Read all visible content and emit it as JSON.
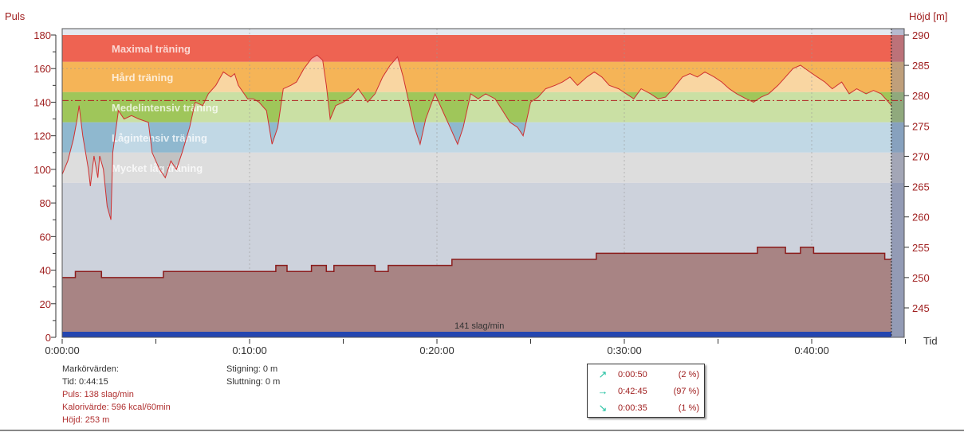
{
  "chart_data": {
    "type": "area",
    "left_axis": {
      "label": "Puls",
      "ticks": [
        0,
        20,
        40,
        60,
        80,
        100,
        120,
        140,
        160,
        180
      ],
      "range": [
        0,
        180
      ]
    },
    "right_axis": {
      "label": "Höjd [m]",
      "ticks": [
        245,
        250,
        255,
        260,
        265,
        270,
        275,
        280,
        285,
        290
      ],
      "range": [
        245,
        290
      ]
    },
    "x_axis": {
      "label": "Tid",
      "ticks": [
        "0:00:00",
        "0:10:00",
        "0:20:00",
        "0:30:00",
        "0:40:00"
      ],
      "tick_minutes": [
        0,
        10,
        20,
        30,
        40
      ],
      "range_minutes": [
        0,
        45
      ]
    },
    "zones": [
      {
        "name": "Maximal träning",
        "min": 164,
        "max": 180,
        "color": "#ee6352"
      },
      {
        "name": "Hård träning",
        "min": 146,
        "max": 164,
        "color": "#f5b457"
      },
      {
        "name": "Medelintensiv träning",
        "min": 128,
        "max": 146,
        "color": "#9fc65a"
      },
      {
        "name": "Lågintensiv träning",
        "min": 110,
        "max": 128,
        "color": "#8fb8cf"
      },
      {
        "name": "Mycket låg träning",
        "min": 92,
        "max": 110,
        "color": "#c2c2c2"
      }
    ],
    "average": {
      "value": 141,
      "label": "141 slag/min"
    },
    "marker_minute": 44.25,
    "heart_rate": [
      [
        0,
        97
      ],
      [
        0.3,
        105
      ],
      [
        0.6,
        118
      ],
      [
        0.8,
        130
      ],
      [
        0.9,
        138
      ],
      [
        1.1,
        120
      ],
      [
        1.4,
        100
      ],
      [
        1.5,
        90
      ],
      [
        1.7,
        108
      ],
      [
        1.9,
        95
      ],
      [
        2.0,
        108
      ],
      [
        2.2,
        100
      ],
      [
        2.4,
        78
      ],
      [
        2.6,
        70
      ],
      [
        2.7,
        110
      ],
      [
        3.0,
        135
      ],
      [
        3.3,
        130
      ],
      [
        3.7,
        132
      ],
      [
        4.1,
        130
      ],
      [
        4.6,
        128
      ],
      [
        4.8,
        110
      ],
      [
        5.2,
        100
      ],
      [
        5.5,
        95
      ],
      [
        5.8,
        105
      ],
      [
        6.1,
        100
      ],
      [
        6.4,
        110
      ],
      [
        6.8,
        125
      ],
      [
        7.1,
        140
      ],
      [
        7.5,
        138
      ],
      [
        7.8,
        145
      ],
      [
        8.2,
        150
      ],
      [
        8.6,
        158
      ],
      [
        9.0,
        155
      ],
      [
        9.2,
        157
      ],
      [
        9.4,
        150
      ],
      [
        9.9,
        142
      ],
      [
        10.2,
        142
      ],
      [
        10.5,
        140
      ],
      [
        10.9,
        135
      ],
      [
        11.2,
        115
      ],
      [
        11.5,
        125
      ],
      [
        11.8,
        148
      ],
      [
        12.2,
        150
      ],
      [
        12.5,
        152
      ],
      [
        12.9,
        160
      ],
      [
        13.3,
        166
      ],
      [
        13.6,
        168
      ],
      [
        13.9,
        165
      ],
      [
        14.1,
        150
      ],
      [
        14.3,
        130
      ],
      [
        14.6,
        138
      ],
      [
        15.0,
        140
      ],
      [
        15.4,
        143
      ],
      [
        15.8,
        148
      ],
      [
        16.3,
        140
      ],
      [
        16.7,
        145
      ],
      [
        17.1,
        155
      ],
      [
        17.5,
        162
      ],
      [
        17.9,
        167
      ],
      [
        18.2,
        155
      ],
      [
        18.5,
        140
      ],
      [
        18.8,
        125
      ],
      [
        19.1,
        115
      ],
      [
        19.4,
        130
      ],
      [
        19.9,
        145
      ],
      [
        20.3,
        135
      ],
      [
        20.7,
        125
      ],
      [
        21.1,
        115
      ],
      [
        21.4,
        125
      ],
      [
        21.8,
        145
      ],
      [
        22.2,
        142
      ],
      [
        22.6,
        145
      ],
      [
        23.1,
        142
      ],
      [
        23.5,
        135
      ],
      [
        23.9,
        128
      ],
      [
        24.3,
        125
      ],
      [
        24.6,
        120
      ],
      [
        24.8,
        130
      ],
      [
        25.0,
        140
      ],
      [
        25.4,
        143
      ],
      [
        25.8,
        148
      ],
      [
        26.3,
        150
      ],
      [
        26.7,
        152
      ],
      [
        27.1,
        155
      ],
      [
        27.5,
        150
      ],
      [
        28.0,
        155
      ],
      [
        28.4,
        158
      ],
      [
        28.8,
        155
      ],
      [
        29.2,
        150
      ],
      [
        29.7,
        148
      ],
      [
        30.1,
        145
      ],
      [
        30.5,
        142
      ],
      [
        30.9,
        148
      ],
      [
        31.4,
        145
      ],
      [
        31.8,
        142
      ],
      [
        32.2,
        143
      ],
      [
        32.6,
        148
      ],
      [
        33.1,
        155
      ],
      [
        33.5,
        157
      ],
      [
        33.9,
        155
      ],
      [
        34.3,
        158
      ],
      [
        34.8,
        155
      ],
      [
        35.2,
        152
      ],
      [
        35.6,
        148
      ],
      [
        36.0,
        145
      ],
      [
        36.5,
        142
      ],
      [
        36.9,
        140
      ],
      [
        37.3,
        143
      ],
      [
        37.7,
        145
      ],
      [
        38.2,
        150
      ],
      [
        38.6,
        155
      ],
      [
        39.0,
        160
      ],
      [
        39.4,
        162
      ],
      [
        39.9,
        158
      ],
      [
        40.3,
        155
      ],
      [
        40.7,
        152
      ],
      [
        41.1,
        148
      ],
      [
        41.6,
        152
      ],
      [
        42.0,
        145
      ],
      [
        42.4,
        148
      ],
      [
        42.9,
        145
      ],
      [
        43.3,
        147
      ],
      [
        43.7,
        145
      ],
      [
        44.1,
        140
      ],
      [
        44.25,
        138
      ]
    ],
    "altitude": [
      [
        0,
        250
      ],
      [
        0.7,
        251
      ],
      [
        2.1,
        250
      ],
      [
        5.4,
        251
      ],
      [
        11.4,
        252
      ],
      [
        12.0,
        251
      ],
      [
        13.3,
        252
      ],
      [
        14.1,
        251
      ],
      [
        14.5,
        252
      ],
      [
        16.7,
        251
      ],
      [
        17.4,
        252
      ],
      [
        20.8,
        253
      ],
      [
        28.5,
        254
      ],
      [
        37.1,
        255
      ],
      [
        38.6,
        254
      ],
      [
        39.4,
        255
      ],
      [
        40.1,
        254
      ],
      [
        43.9,
        253
      ],
      [
        44.25,
        253
      ]
    ]
  },
  "marker_values": {
    "title": "Markörvärden:",
    "time": "Tid: 0:44:15",
    "pulse": "Puls: 138 slag/min",
    "calories": "Kalorivärde: 596 kcal/60min",
    "altitude": "Höjd: 253 m",
    "ascent": "Stigning: 0 m",
    "descent": "Sluttning: 0 m"
  },
  "slope_summary": [
    {
      "icon": "arrow-up-right-icon",
      "glyph": "↗",
      "time": "0:00:50",
      "percent": "(2 %)"
    },
    {
      "icon": "arrow-right-icon",
      "glyph": "→",
      "time": "0:42:45",
      "percent": "(97 %)"
    },
    {
      "icon": "arrow-down-right-icon",
      "glyph": "↘",
      "time": "0:00:35",
      "percent": "(1 %)"
    }
  ]
}
